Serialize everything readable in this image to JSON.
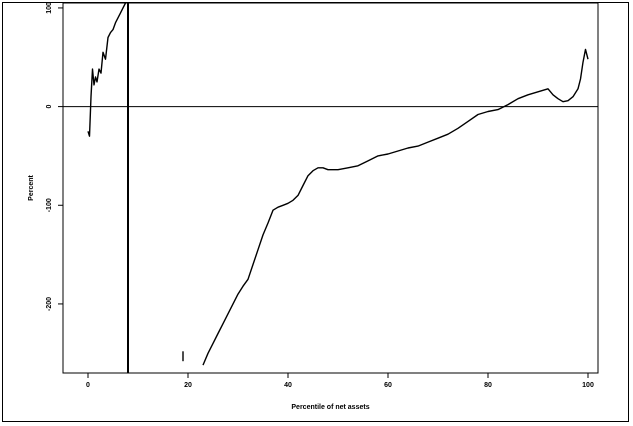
{
  "chart_data": {
    "type": "line",
    "title": "",
    "xlabel": "Percentile of net assets",
    "ylabel": "Percent",
    "xlim": [
      -5,
      102
    ],
    "ylim": [
      -270,
      105
    ],
    "x_ticks": [
      0,
      20,
      40,
      60,
      80,
      100
    ],
    "x_tick_labels": [
      "0",
      "20",
      "40",
      "60",
      "80",
      "100"
    ],
    "y_ticks": [
      100,
      0,
      -100,
      -200
    ],
    "y_tick_labels": [
      "100",
      "0",
      "-100",
      "-200"
    ],
    "reference_lines": {
      "horizontal_y": 0,
      "vertical_x": 8
    },
    "grid": false,
    "legend": "none",
    "line_color": "#000000",
    "series": [
      {
        "x": [
          0,
          0.3,
          0.6,
          0.9,
          1.2,
          1.5,
          1.8,
          2.2,
          2.6,
          3.0,
          3.5,
          4.0,
          4.5,
          5.0,
          5.5,
          6.0,
          6.5,
          7.0,
          7.5,
          8.0,
          19.0,
          19.0,
          23.0,
          24.0,
          25.0,
          26.0,
          27.0,
          28.0,
          29.0,
          30.0,
          31.0,
          32.0,
          33.0,
          34.0,
          35.0,
          36.0,
          37.0,
          38.0,
          39.0,
          40.0,
          41.0,
          42.0,
          43.0,
          44.0,
          45.0,
          46.0,
          47.0,
          48.0,
          50.0,
          52.0,
          54.0,
          56.0,
          58.0,
          60.0,
          62.0,
          64.0,
          66.0,
          68.0,
          70.0,
          72.0,
          74.0,
          76.0,
          78.0,
          80.0,
          82.0,
          84.0,
          86.0,
          88.0,
          90.0,
          92.0,
          93.0,
          94.0,
          95.0,
          96.0,
          97.0,
          98.0,
          98.5,
          99.0,
          99.5,
          100.0
        ],
        "y": [
          -25,
          -30,
          10,
          38,
          22,
          30,
          25,
          38,
          34,
          55,
          48,
          70,
          75,
          78,
          85,
          90,
          95,
          100,
          105,
          108,
          -248,
          -258,
          -262,
          -250,
          -240,
          -230,
          -220,
          -210,
          -200,
          -190,
          -182,
          -175,
          -160,
          -145,
          -130,
          -118,
          -105,
          -102,
          -100,
          -98,
          -95,
          -90,
          -80,
          -70,
          -65,
          -62,
          -62,
          -64,
          -64,
          -62,
          -60,
          -55,
          -50,
          -48,
          -45,
          -42,
          -40,
          -36,
          -32,
          -28,
          -22,
          -15,
          -8,
          -5,
          -3,
          2,
          8,
          12,
          15,
          18,
          12,
          8,
          5,
          6,
          10,
          18,
          28,
          45,
          58,
          48
        ]
      }
    ]
  }
}
